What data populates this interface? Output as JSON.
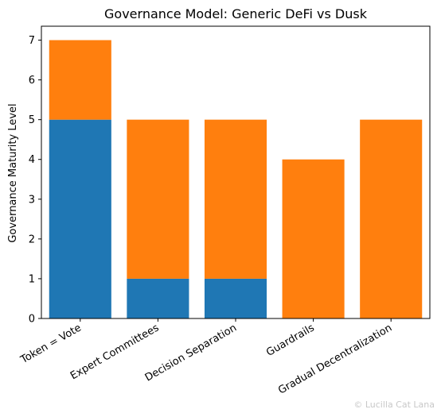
{
  "chart_data": {
    "type": "bar",
    "stacked": true,
    "title": "Governance Model: Generic DeFi vs Dusk",
    "ylabel": "Governance Maturity Level",
    "xlabel": "",
    "categories": [
      "Token = Vote",
      "Expert Committees",
      "Decision Separation",
      "Guardrails",
      "Gradual Decentralization"
    ],
    "series": [
      {
        "values": [
          5,
          1,
          1,
          0,
          0
        ],
        "color": "#1f77b4"
      },
      {
        "values": [
          2,
          4,
          4,
          4,
          5
        ],
        "color": "#ff7f0e"
      }
    ],
    "ylim": [
      0,
      7.35
    ],
    "yticks": [
      0,
      1,
      2,
      3,
      4,
      5,
      6,
      7
    ],
    "grid": false,
    "legend": "none"
  },
  "watermark": "© Lucilla Cat Lana"
}
